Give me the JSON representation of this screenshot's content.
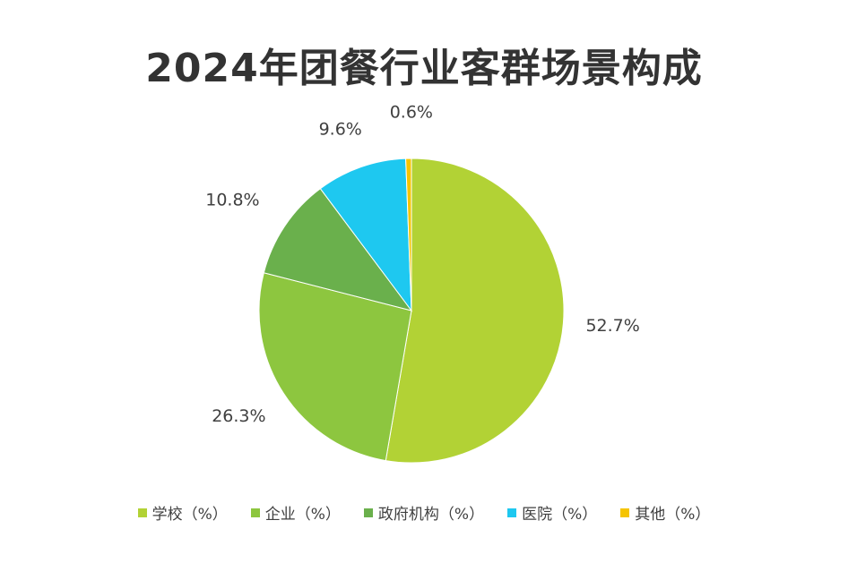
{
  "chart_data": {
    "type": "pie",
    "title": "2024年团餐行业客群场景构成",
    "slices": [
      {
        "label": "学校（%）",
        "value": 52.7,
        "display": "52.7%",
        "color": "#b2d235"
      },
      {
        "label": "企业（%）",
        "value": 26.3,
        "display": "26.3%",
        "color": "#8dc63f"
      },
      {
        "label": "政府机构（%）",
        "value": 10.8,
        "display": "10.8%",
        "color": "#6ab04c"
      },
      {
        "label": "医院（%）",
        "value": 9.6,
        "display": "9.6%",
        "color": "#1ec8f0"
      },
      {
        "label": "其他（%）",
        "value": 0.6,
        "display": "0.6%",
        "color": "#f5c400"
      }
    ],
    "legend_position": "bottom"
  }
}
